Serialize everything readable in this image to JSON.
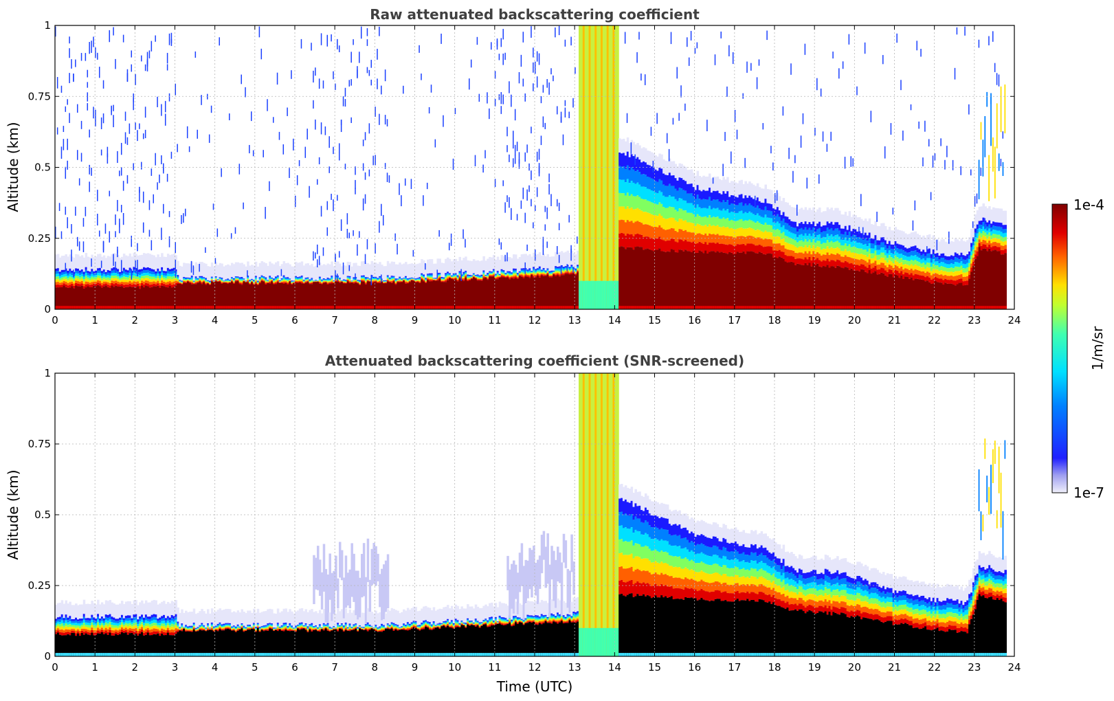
{
  "chart_data": [
    {
      "type": "heatmap",
      "title": "Raw attenuated backscattering coefficient",
      "xlabel": "",
      "ylabel": "Altitude (km)",
      "xlim": [
        0,
        24
      ],
      "ylim": [
        0,
        1
      ],
      "x_ticks": [
        "0",
        "1",
        "2",
        "3",
        "4",
        "5",
        "6",
        "7",
        "8",
        "9",
        "10",
        "11",
        "12",
        "13",
        "14",
        "15",
        "16",
        "17",
        "18",
        "19",
        "20",
        "21",
        "22",
        "23",
        "24"
      ],
      "y_ticks": [
        "0",
        "0.25",
        "0.5",
        "0.75",
        "1"
      ],
      "grid": true,
      "profile": {
        "t": [
          0,
          3,
          3.1,
          6.5,
          8.3,
          13.1,
          14.1,
          15,
          16,
          17,
          17.8,
          18.5,
          19.5,
          20,
          21,
          22,
          22.8,
          23.1,
          23.8
        ],
        "layer_top_km": [
          0.14,
          0.14,
          0.11,
          0.11,
          0.11,
          0.15,
          0.56,
          0.5,
          0.43,
          0.4,
          0.38,
          0.3,
          0.3,
          0.28,
          0.23,
          0.2,
          0.19,
          0.32,
          0.3
        ],
        "saturated_top_km": [
          0.07,
          0.07,
          0.09,
          0.09,
          0.09,
          0.12,
          0.17,
          0.17,
          0.17,
          0.17,
          0.17,
          0.14,
          0.13,
          0.12,
          0.1,
          0.08,
          0.07,
          0.2,
          0.18
        ]
      },
      "cloud_column_utc": [
        13.1,
        14.1
      ]
    },
    {
      "type": "heatmap",
      "title": "Attenuated backscattering coefficient (SNR-screened)",
      "xlabel": "Time (UTC)",
      "ylabel": "Altitude (km)",
      "xlim": [
        0,
        24
      ],
      "ylim": [
        0,
        1
      ],
      "x_ticks": [
        "0",
        "1",
        "2",
        "3",
        "4",
        "5",
        "6",
        "7",
        "8",
        "9",
        "10",
        "11",
        "12",
        "13",
        "14",
        "15",
        "16",
        "17",
        "18",
        "19",
        "20",
        "21",
        "22",
        "23",
        "24"
      ],
      "y_ticks": [
        "0",
        "0.25",
        "0.5",
        "0.75",
        "1"
      ],
      "grid": true,
      "cloud_column_utc": [
        13.1,
        14.1
      ]
    }
  ],
  "colorbar": {
    "max_label": "1e-4",
    "min_label": "1e-7",
    "unit_label": "1/m/sr",
    "colormap": "jet",
    "low_color": "#e6e6fa",
    "high_color": "#800000"
  }
}
